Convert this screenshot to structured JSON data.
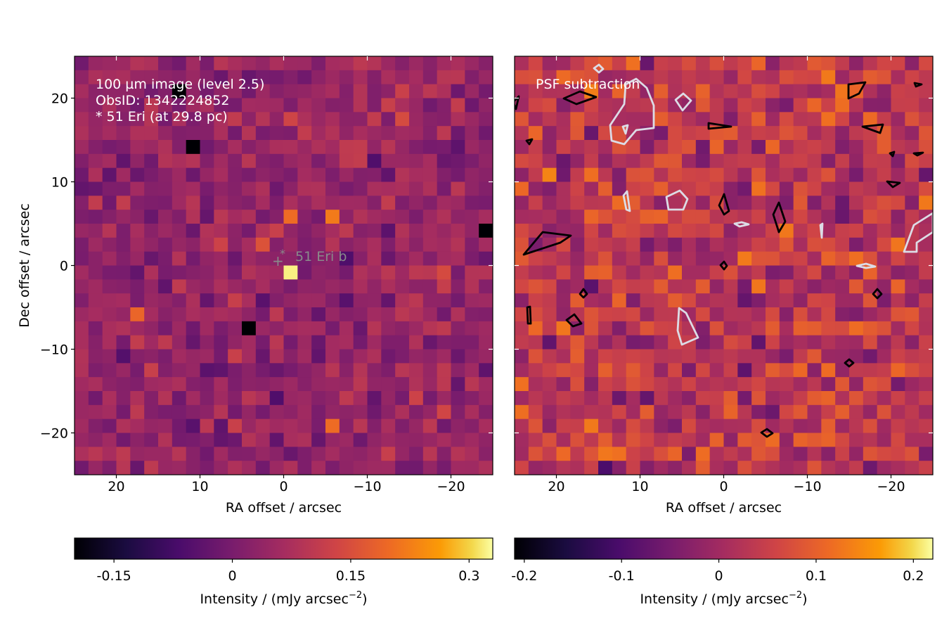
{
  "chart_data": [
    {
      "type": "heatmap",
      "panel": "left",
      "annotation_lines": [
        "100 µm image (level 2.5)",
        "ObsID: 1342224852",
        "* 51 Eri (at 29.8 pc)"
      ],
      "target_label": "51 Eri b",
      "target_position": {
        "ra": 0,
        "dec": 0
      },
      "xlabel": "RA offset / arcsec",
      "ylabel": "Dec offset / arcsec",
      "xlim": [
        25,
        -25
      ],
      "ylim": [
        -25,
        25
      ],
      "xticks": [
        20,
        10,
        0,
        -10,
        -20
      ],
      "xtick_labels": [
        "20",
        "10",
        "0",
        "−10",
        "−20"
      ],
      "yticks": [
        20,
        10,
        0,
        -10,
        -20
      ],
      "ytick_labels": [
        "20",
        "10",
        "0",
        "−10",
        "−20"
      ],
      "colorscale": "inferno",
      "vmin": -0.2,
      "vmax": 0.33,
      "pixel_grid": {
        "nx": 30,
        "ny": 30,
        "pixel_size_arcsec": 1.67
      },
      "notable_pixels": [
        {
          "ra": 0,
          "dec": 0,
          "value": 0.32
        },
        {
          "ra": 0,
          "dec": 6.5,
          "value": 0.2
        },
        {
          "ra": -6,
          "dec": 6.5,
          "value": 0.22
        },
        {
          "ra": -5,
          "dec": -19,
          "value": 0.2
        },
        {
          "ra": 17,
          "dec": -6,
          "value": 0.19
        },
        {
          "ra": 12,
          "dec": 20.5,
          "value": -0.2
        },
        {
          "ra": 11,
          "dec": 15,
          "value": -0.2
        },
        {
          "ra": 5,
          "dec": -8,
          "value": -0.2
        },
        {
          "ra": -24,
          "dec": 5,
          "value": -0.2
        }
      ],
      "colorbar": {
        "label": "Intensity / (mJy arcsec",
        "label_sup": "−2",
        "label_end": ")",
        "ticks": [
          -0.15,
          0,
          0.15,
          0.3
        ],
        "tick_labels": [
          "-0.15",
          "0",
          "0.15",
          "0.3"
        ],
        "min": -0.2,
        "max": 0.33
      }
    },
    {
      "type": "heatmap",
      "panel": "right",
      "annotation_lines": [
        "PSF subtraction"
      ],
      "xlabel": "RA offset / arcsec",
      "ylabel": "",
      "xlim": [
        25,
        -25
      ],
      "ylim": [
        -25,
        25
      ],
      "xticks": [
        20,
        10,
        0,
        -10,
        -20
      ],
      "xtick_labels": [
        "20",
        "10",
        "0",
        "−10",
        "−20"
      ],
      "yticks": [
        20,
        10,
        0,
        -10,
        -20
      ],
      "colorscale": "inferno",
      "vmin": -0.21,
      "vmax": 0.22,
      "contours": {
        "positive_color": "#000000",
        "negative_color": "#dcdce6"
      },
      "colorbar": {
        "label": "Intensity / (mJy arcsec",
        "label_sup": "−2",
        "label_end": ")",
        "ticks": [
          -0.2,
          -0.1,
          0,
          0.1,
          0.2
        ],
        "tick_labels": [
          "-0.2",
          "-0.1",
          "0",
          "0.1",
          "0.2"
        ],
        "min": -0.21,
        "max": 0.22
      }
    }
  ]
}
